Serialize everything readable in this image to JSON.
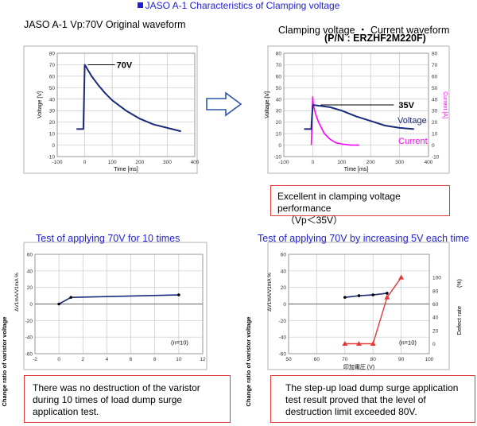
{
  "heading": "JASO A-1 Characteristics of Clamping voltage",
  "left_label": "JASO A-1    Vp:70V  Original waveform",
  "right_label": "Clamping voltage  ・  Current waveform",
  "part_number": "(P/N : ERZHF2M220F)",
  "test1_title": "Test of applying 70V for 10 times",
  "test2_title": "Test of applying 70V by increasing 5V each time",
  "note_clamp_line1": "Excellent in clamping voltage performance",
  "note_clamp_line2": "（Vp＜35V）",
  "note_test1": "There was no destruction of the varistor during 10 times of  load dump surge application test.",
  "note_test2": "The step-up load dump surge application test result proved that the level of destruction limit exceeded 80V.",
  "colors": {
    "blue": "#1f1fd6",
    "navy": "#1a2a7a",
    "magenta": "#ff00ff",
    "red": "#e23a3a"
  },
  "chart_data": [
    {
      "type": "line",
      "title": "Original waveform",
      "xlabel": "Time [ms]",
      "ylabel": "Voltage [V]",
      "xlim": [
        -100,
        400
      ],
      "ylim": [
        -10,
        80
      ],
      "xticks": [
        -100,
        0,
        100,
        200,
        300,
        400
      ],
      "yticks": [
        -10,
        0,
        10,
        20,
        30,
        40,
        50,
        60,
        70,
        80
      ],
      "annotation": "70V",
      "series": [
        {
          "x": [
            -30,
            -5,
            -5,
            0,
            25,
            50,
            75,
            100,
            150,
            200,
            250,
            300,
            350
          ],
          "y": [
            14,
            14,
            15,
            70,
            60,
            52,
            45,
            39,
            30,
            23,
            18,
            15,
            12
          ]
        }
      ]
    },
    {
      "type": "line",
      "title": "Clamping voltage / Current waveform",
      "xlabel": "Time [ms]",
      "ylabel": "Voltage [V]",
      "y2label": "Current [A]",
      "xlim": [
        -100,
        400
      ],
      "ylim": [
        -10,
        80
      ],
      "y2lim": [
        -10,
        80
      ],
      "xticks": [
        -100,
        0,
        100,
        200,
        300,
        400
      ],
      "yticks": [
        -10,
        0,
        10,
        20,
        30,
        40,
        50,
        60,
        70,
        80
      ],
      "annotation": "35V",
      "series": [
        {
          "name": "Voltage",
          "x": [
            -30,
            -5,
            -5,
            0,
            30,
            60,
            100,
            150,
            200,
            250,
            300,
            350
          ],
          "y": [
            14,
            14,
            15,
            35,
            34,
            33,
            30,
            25,
            21,
            17,
            15,
            14
          ]
        },
        {
          "name": "Current",
          "x": [
            -5,
            0,
            2,
            10,
            20,
            40,
            60,
            80,
            100,
            130,
            160
          ],
          "y": [
            0,
            42,
            35,
            27,
            20,
            10,
            5,
            2,
            1,
            0,
            0
          ]
        }
      ]
    },
    {
      "type": "line",
      "title": "Test of applying 70V for 10 times",
      "xlabel": "",
      "ylabel": "Change ratio of varistor voltage",
      "ylabel_top": "ΔV1mA/V1mA %",
      "xlim": [
        -2,
        12
      ],
      "ylim": [
        -60,
        60
      ],
      "xticks": [
        -2,
        0,
        2,
        4,
        6,
        8,
        10,
        12
      ],
      "yticks": [
        -60,
        -40,
        -20,
        0,
        20,
        40,
        60
      ],
      "annotation": "(n=10)",
      "series": [
        {
          "x": [
            0,
            1,
            10
          ],
          "y": [
            0,
            8,
            11
          ]
        }
      ]
    },
    {
      "type": "line",
      "title": "Test of applying 70V by increasing 5V each time",
      "xlabel": "印加電圧 (V)",
      "ylabel": "Change ratio of varistor voltage",
      "ylabel_top": "ΔV1mA/V1mA %",
      "y2label": "Defect rate",
      "y2unit": "(%)",
      "xlim": [
        50,
        100
      ],
      "ylim": [
        -60,
        60
      ],
      "y2lim": [
        0,
        120
      ],
      "xticks": [
        50,
        60,
        70,
        80,
        90,
        100
      ],
      "yticks": [
        -60,
        -40,
        -20,
        0,
        20,
        40,
        60
      ],
      "y2ticks": [
        0,
        20,
        40,
        60,
        80,
        100
      ],
      "annotation": "(n=10)",
      "series": [
        {
          "name": "change",
          "x": [
            70,
            75,
            80,
            85
          ],
          "y": [
            8,
            10,
            11,
            13
          ]
        },
        {
          "name": "defect",
          "x": [
            70,
            75,
            80,
            85,
            90
          ],
          "y2": [
            0,
            0,
            0,
            70,
            100
          ]
        }
      ]
    }
  ]
}
